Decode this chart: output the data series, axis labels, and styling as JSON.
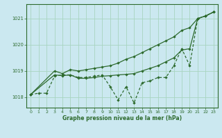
{
  "bg_color": "#cbe8f0",
  "grid_color": "#a8d4c0",
  "line_color": "#2d6a2d",
  "xlabel": "Graphe pression niveau de la mer (hPa)",
  "xlim": [
    -0.5,
    23.5
  ],
  "ylim": [
    1017.6,
    1021.55
  ],
  "yticks": [
    1018,
    1019,
    1020,
    1021
  ],
  "xticks": [
    0,
    1,
    2,
    3,
    4,
    5,
    6,
    7,
    8,
    9,
    10,
    11,
    12,
    13,
    14,
    15,
    16,
    17,
    18,
    19,
    20,
    21,
    22,
    23
  ],
  "hours_jagged": [
    0,
    1,
    2,
    3,
    4,
    5,
    6,
    7,
    8,
    9,
    10,
    11,
    12,
    13,
    14,
    15,
    16,
    17,
    18,
    19,
    20,
    21,
    22,
    23
  ],
  "jagged": [
    1018.1,
    1018.15,
    1018.15,
    1018.8,
    1018.85,
    1018.85,
    1018.75,
    1018.75,
    1018.8,
    1018.85,
    1018.4,
    1017.9,
    1018.4,
    1017.78,
    1018.55,
    1018.62,
    1018.75,
    1018.75,
    1019.2,
    1019.85,
    1019.2,
    1021.0,
    1021.1,
    1021.25
  ],
  "hours_upper": [
    0,
    3,
    4,
    5,
    6,
    7,
    8,
    9,
    10,
    11,
    12,
    13,
    14,
    15,
    16,
    17,
    18,
    19,
    20,
    21,
    22,
    23
  ],
  "upper": [
    1018.1,
    1019.0,
    1018.9,
    1019.05,
    1019.0,
    1019.05,
    1019.1,
    1019.15,
    1019.2,
    1019.3,
    1019.45,
    1019.55,
    1019.7,
    1019.85,
    1020.0,
    1020.15,
    1020.3,
    1020.55,
    1020.65,
    1021.0,
    1021.1,
    1021.25
  ],
  "hours_lower": [
    0,
    3,
    4,
    5,
    6,
    7,
    8,
    9,
    10,
    11,
    12,
    13,
    14,
    15,
    16,
    17,
    18,
    19,
    20,
    21,
    22,
    23
  ],
  "lower": [
    1018.1,
    1018.85,
    1018.82,
    1018.85,
    1018.72,
    1018.72,
    1018.75,
    1018.8,
    1018.82,
    1018.85,
    1018.87,
    1018.9,
    1019.0,
    1019.1,
    1019.2,
    1019.35,
    1019.5,
    1019.8,
    1019.85,
    1021.0,
    1021.1,
    1021.25
  ]
}
